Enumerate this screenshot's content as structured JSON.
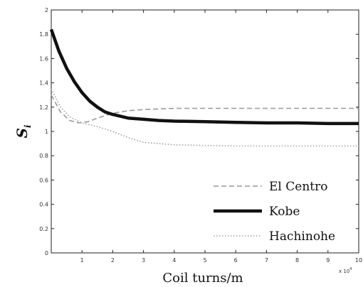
{
  "chart_data": {
    "type": "line",
    "xlabel": "Coil turns/m",
    "ylabel": "S",
    "ylabel_subscript": "i",
    "x_multiplier": "x 10",
    "x_multiplier_exp": "4",
    "xlim": [
      0,
      10
    ],
    "ylim": [
      0,
      2
    ],
    "x_ticks": [
      "1",
      "2",
      "3",
      "4",
      "5",
      "6",
      "7",
      "8",
      "9",
      "10"
    ],
    "y_ticks": [
      "0",
      "0.2",
      "0.4",
      "0.6",
      "0.8",
      "1",
      "1.2",
      "1.4",
      "1.6",
      "1.8",
      "2"
    ],
    "legend_position": "bottom-right",
    "grid": false,
    "series": [
      {
        "name": "El Centro",
        "style": "dashed",
        "color": "#9a9a9a",
        "x": [
          0,
          0.3,
          0.6,
          0.9,
          1.2,
          1.5,
          2,
          2.5,
          3,
          4,
          5,
          6,
          7,
          8,
          9,
          10
        ],
        "y": [
          1.3,
          1.16,
          1.09,
          1.07,
          1.08,
          1.11,
          1.15,
          1.17,
          1.18,
          1.19,
          1.19,
          1.19,
          1.19,
          1.19,
          1.19,
          1.19
        ]
      },
      {
        "name": "Kobe",
        "style": "solid",
        "color": "#111111",
        "x": [
          0,
          0.25,
          0.5,
          0.75,
          1,
          1.25,
          1.5,
          1.75,
          2,
          2.5,
          3,
          3.5,
          4,
          5,
          6,
          7,
          8,
          9,
          10
        ],
        "y": [
          1.84,
          1.66,
          1.52,
          1.41,
          1.32,
          1.25,
          1.2,
          1.16,
          1.14,
          1.11,
          1.1,
          1.09,
          1.085,
          1.08,
          1.075,
          1.07,
          1.07,
          1.065,
          1.065
        ]
      },
      {
        "name": "Hachinohe",
        "style": "dotted",
        "color": "#a0a0a0",
        "x": [
          0,
          0.3,
          0.6,
          1,
          1.5,
          2,
          2.5,
          3,
          3.5,
          4,
          5,
          6,
          7,
          8,
          9,
          10
        ],
        "y": [
          1.35,
          1.2,
          1.12,
          1.07,
          1.04,
          1.0,
          0.95,
          0.91,
          0.9,
          0.89,
          0.885,
          0.88,
          0.88,
          0.88,
          0.88,
          0.88
        ]
      }
    ]
  }
}
